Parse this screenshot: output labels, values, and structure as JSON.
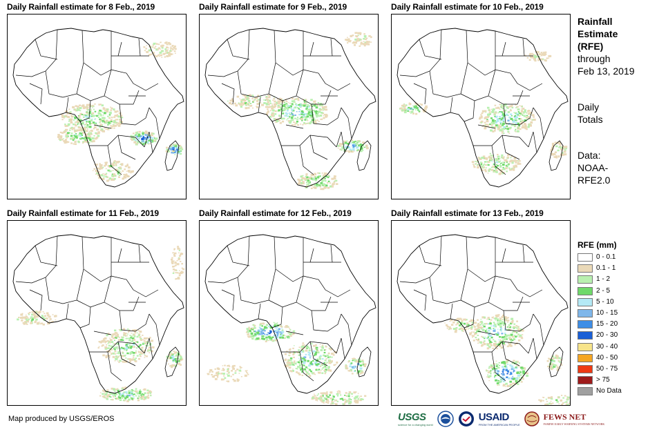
{
  "panels": [
    {
      "title": "Daily Rainfall estimate for 8 Feb., 2019"
    },
    {
      "title": "Daily Rainfall estimate for 9 Feb., 2019"
    },
    {
      "title": "Daily Rainfall estimate for 10 Feb., 2019"
    },
    {
      "title": "Daily Rainfall estimate for 11 Feb., 2019"
    },
    {
      "title": "Daily Rainfall estimate for 12 Feb., 2019"
    },
    {
      "title": "Daily Rainfall estimate for 13 Feb., 2019"
    }
  ],
  "side": {
    "title_line1": "Rainfall",
    "title_line2": "Estimate",
    "title_line3": "(RFE)",
    "through": "through",
    "date": "Feb 13, 2019",
    "daily1": "Daily",
    "daily2": "Totals",
    "data1": "Data:",
    "data2": "NOAA-",
    "data3": "RFE2.0"
  },
  "legend": {
    "title": "RFE (mm)",
    "items": [
      {
        "label": "0 - 0.1",
        "color": "#ffffff"
      },
      {
        "label": "0.1 - 1",
        "color": "#ead9b8"
      },
      {
        "label": "1 - 2",
        "color": "#b9f0b0"
      },
      {
        "label": "2 - 5",
        "color": "#6fd96a"
      },
      {
        "label": "5 - 10",
        "color": "#b4e9f5"
      },
      {
        "label": "10 - 15",
        "color": "#7fb7ea"
      },
      {
        "label": "15 - 20",
        "color": "#3f8ee6"
      },
      {
        "label": "20 - 30",
        "color": "#1a5fd6"
      },
      {
        "label": "30 - 40",
        "color": "#f7e48a"
      },
      {
        "label": "40 - 50",
        "color": "#f5a623"
      },
      {
        "label": "50 - 75",
        "color": "#ee3a14"
      },
      {
        "label": "> 75",
        "color": "#9e1b1b"
      },
      {
        "label": "No Data",
        "color": "#a0a0a0"
      }
    ]
  },
  "credit": "Map produced by USGS/EROS",
  "logos": {
    "usgs": "USGS",
    "usgs_tag": "science for a changing world",
    "usaid": "USAID",
    "usaid_tag": "FROM THE AMERICAN PEOPLE",
    "fews": "FEWS NET",
    "fews_tag": "FAMINE EARLY WARNING SYSTEMS NETWORK"
  }
}
